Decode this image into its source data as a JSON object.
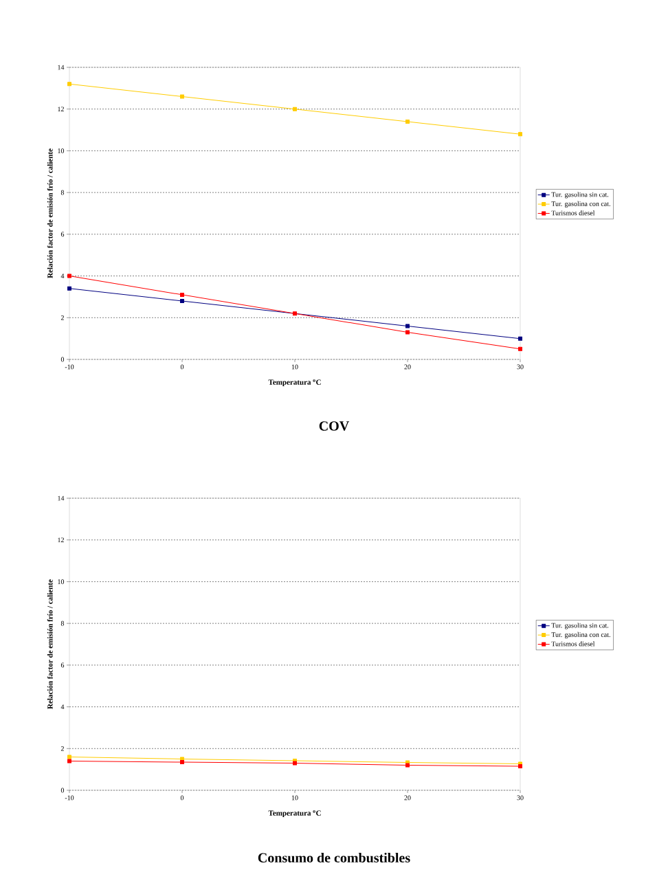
{
  "chart_data": [
    {
      "type": "line",
      "title": "COV",
      "xlabel": "Temperatura $^{o}$C",
      "ylabel": "Relación factor de emisión frío / caliente",
      "x": [
        -10,
        0,
        10,
        20,
        30
      ],
      "xlim": [
        -10,
        30
      ],
      "xticks": [
        -10,
        0,
        10,
        20,
        30
      ],
      "ylim": [
        0,
        14
      ],
      "yticks": [
        0,
        2,
        4,
        6,
        8,
        10,
        12,
        14
      ],
      "grid": "y",
      "legend": "right",
      "marker": "square",
      "line_style": "solid",
      "series": [
        {
          "name": "Tur. gasolina sin cat.",
          "color": "#000080",
          "values": [
            3.4,
            2.8,
            null,
            1.6,
            1.0
          ]
        },
        {
          "name": "Tur. gasolina con cat.",
          "color": "#ffcc00",
          "values": [
            13.2,
            12.6,
            12.0,
            11.4,
            10.8
          ]
        },
        {
          "name": "Turismos diesel",
          "color": "#ff0000",
          "values": [
            4.0,
            3.1,
            2.2,
            1.3,
            0.5
          ]
        }
      ]
    },
    {
      "type": "line",
      "title": "Consumo de combustibles",
      "xlabel": "Temperatura $^{o}$C",
      "ylabel": "Relación factor de emisión frío / caliente",
      "x": [
        -10,
        0,
        10,
        20,
        30
      ],
      "xlim": [
        -10,
        30
      ],
      "xticks": [
        -10,
        0,
        10,
        20,
        30
      ],
      "ylim": [
        0,
        14
      ],
      "yticks": [
        0,
        2,
        4,
        6,
        8,
        10,
        12,
        14
      ],
      "grid": "y",
      "legend": "right",
      "marker": "square",
      "line_style": "solid",
      "series": [
        {
          "name": "Tur. gasolina sin cat.",
          "color": "#000080",
          "values": [
            null,
            null,
            null,
            null,
            null
          ]
        },
        {
          "name": "Tur. gasolina con cat.",
          "color": "#ffcc00",
          "values": [
            1.6,
            1.5,
            1.42,
            1.33,
            1.27
          ]
        },
        {
          "name": "Turismos diesel",
          "color": "#ff0000",
          "values": [
            1.4,
            1.35,
            1.3,
            1.2,
            1.15
          ]
        }
      ]
    }
  ]
}
